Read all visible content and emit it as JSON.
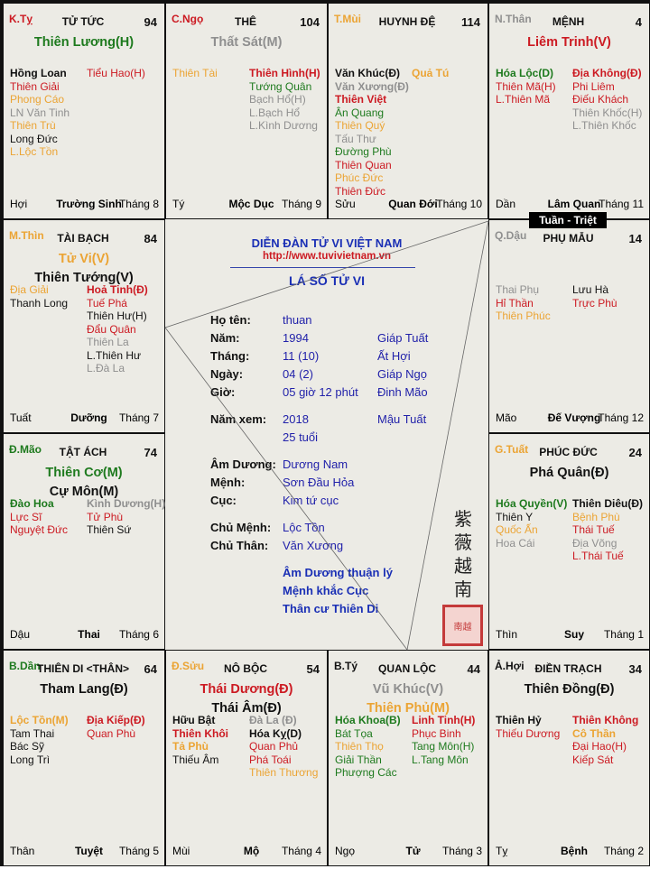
{
  "colors": {
    "R": "#cc1a22",
    "G": "#1e7a1e",
    "O": "#eba434",
    "Gy": "#8f8f8f",
    "K": "#111111"
  },
  "tuan_triet": "Tuần - Triệt",
  "center": {
    "title": "DIỄN ĐÀN TỬ VI VIỆT NAM",
    "url": "http://www.tuvivietnam.vn",
    "subtitle": "LÁ SỐ TỬ VI",
    "rows": [
      {
        "label": "Họ tên:",
        "value": "thuan",
        "extra": ""
      },
      {
        "label": "Năm:",
        "value": "1994",
        "extra": "Giáp Tuất"
      },
      {
        "label": "Tháng:",
        "value": "11 (10)",
        "extra": "Ất Hợi"
      },
      {
        "label": "Ngày:",
        "value": "04 (2)",
        "extra": "Giáp Ngọ"
      },
      {
        "label": "Giờ:",
        "value": "05 giờ 12 phút",
        "extra": "Đinh Mão"
      },
      {
        "label": "Năm xem:",
        "value": "2018",
        "extra": "Mậu Tuất"
      },
      {
        "label": "",
        "value": "25 tuổi",
        "extra": ""
      },
      {
        "label": "Âm Dương:",
        "value": "Dương Nam",
        "extra": ""
      },
      {
        "label": "Mệnh:",
        "value": "Sơn Đầu Hỏa",
        "extra": ""
      },
      {
        "label": "Cục:",
        "value": "Kim tứ cục",
        "extra": ""
      },
      {
        "label": "Chủ Mệnh:",
        "value": "Lộc Tồn",
        "extra": ""
      },
      {
        "label": "Chủ Thân:",
        "value": "Văn Xương",
        "extra": ""
      }
    ],
    "notes": [
      "Âm Dương thuận lý",
      "Mệnh khắc Cục",
      "Thân cư Thiên Di"
    ],
    "cjk": "紫薇越南",
    "seal": "南越"
  },
  "cells": [
    {
      "can": "K.Tỵ",
      "canColor": "R",
      "name": "TỬ TỨC",
      "num": "94",
      "mains": [
        [
          "Thiên Lương(H)",
          "G"
        ]
      ],
      "left": [
        [
          "Hồng Loan",
          "K",
          1
        ],
        [
          "Thiên Giải",
          "R",
          0
        ],
        [
          "Phong Cáo",
          "O",
          0
        ],
        [
          "LN Văn Tinh",
          "Gy",
          0
        ],
        [
          "Thiên Trù",
          "O",
          0
        ],
        [
          "Long Đức",
          "K",
          0
        ],
        [
          "L.Lộc Tồn",
          "O",
          0
        ]
      ],
      "right": [
        [
          "Tiểu Hao(H)",
          "R",
          0
        ]
      ],
      "branch": "Hợi",
      "stage": "Trường Sinh",
      "month": "Tháng 8"
    },
    {
      "can": "C.Ngọ",
      "canColor": "R",
      "name": "THÊ",
      "num": "104",
      "mains": [
        [
          "Thất Sát(M)",
          "Gy"
        ]
      ],
      "left": [
        [
          "Thiên Tài",
          "O",
          0
        ]
      ],
      "right": [
        [
          "Thiên Hình(H)",
          "R",
          1
        ],
        [
          "Tướng Quân",
          "G",
          0
        ],
        [
          "Bạch Hổ(H)",
          "Gy",
          0
        ],
        [
          "L.Bạch Hổ",
          "Gy",
          0
        ],
        [
          "L.Kình Dương",
          "Gy",
          0
        ]
      ],
      "branch": "Tý",
      "stage": "Mộc Dục",
      "month": "Tháng 9"
    },
    {
      "can": "T.Mùi",
      "canColor": "O",
      "name": "HUYNH ĐỆ",
      "num": "114",
      "mains": [],
      "left": [
        [
          "Văn Khúc(Đ)",
          "K",
          1
        ],
        [
          "Văn Xương(Đ)",
          "Gy",
          1
        ],
        [
          "Thiên Việt",
          "R",
          1
        ],
        [
          "Ân Quang",
          "G",
          0
        ],
        [
          "Thiên Quý",
          "O",
          0
        ],
        [
          "Tấu Thư",
          "Gy",
          0
        ],
        [
          "Đường Phù",
          "G",
          0
        ],
        [
          "Thiên Quan",
          "R",
          0
        ],
        [
          "Phúc Đức",
          "O",
          0
        ],
        [
          "Thiên Đức",
          "R",
          0
        ]
      ],
      "right": [
        [
          "Quả Tú",
          "O",
          1
        ]
      ],
      "branch": "Sửu",
      "stage": "Quan Đới",
      "month": "Tháng 10"
    },
    {
      "can": "N.Thân",
      "canColor": "Gy",
      "name": "MỆNH",
      "num": "4",
      "mains": [
        [
          "Liêm Trinh(V)",
          "R"
        ]
      ],
      "left": [
        [
          "Hóa Lộc(D)",
          "G",
          1
        ],
        [
          "Thiên Mã(H)",
          "R",
          0
        ],
        [
          "L.Thiên Mã",
          "R",
          0
        ]
      ],
      "right": [
        [
          "Địa Không(Đ)",
          "R",
          1
        ],
        [
          "Phi Liêm",
          "R",
          0
        ],
        [
          "Điếu Khách",
          "R",
          0
        ],
        [
          "Thiên Khốc(H)",
          "Gy",
          0
        ],
        [
          "L.Thiên Khốc",
          "Gy",
          0
        ]
      ],
      "branch": "Dần",
      "stage": "Lâm Quan",
      "month": "Tháng 11"
    },
    {
      "can": "M.Thìn",
      "canColor": "O",
      "name": "TÀI BẠCH",
      "num": "84",
      "mains": [
        [
          "Tử Vi(V)",
          "O"
        ],
        [
          "Thiên Tướng(V)",
          "K"
        ]
      ],
      "left": [
        [
          "Địa Giải",
          "O",
          0
        ],
        [
          "Thanh Long",
          "K",
          0
        ]
      ],
      "right": [
        [
          "Hoả Tinh(Đ)",
          "R",
          1
        ],
        [
          "Tuế Phá",
          "R",
          0
        ],
        [
          "Thiên Hư(H)",
          "K",
          0
        ],
        [
          "Đẩu Quân",
          "R",
          0
        ],
        [
          "Thiên La",
          "Gy",
          0
        ],
        [
          "L.Thiên Hư",
          "K",
          0
        ],
        [
          "L.Đà La",
          "Gy",
          0
        ]
      ],
      "branch": "Tuất",
      "stage": "Dưỡng",
      "month": "Tháng 7"
    },
    {
      "can": "Q.Dậu",
      "canColor": "Gy",
      "name": "PHỤ MẪU",
      "num": "14",
      "mains": [],
      "left": [
        [
          "Thai Phụ",
          "Gy",
          0
        ],
        [
          "Hỉ Thần",
          "R",
          0
        ],
        [
          "Thiên Phúc",
          "O",
          0
        ]
      ],
      "right": [
        [
          "Lưu Hà",
          "K",
          0
        ],
        [
          "Trực Phù",
          "R",
          0
        ]
      ],
      "branch": "Mão",
      "stage": "Đế Vượng",
      "month": "Tháng 12"
    },
    {
      "can": "Đ.Mão",
      "canColor": "G",
      "name": "TẬT ÁCH",
      "num": "74",
      "mains": [
        [
          "Thiên Cơ(M)",
          "G"
        ],
        [
          "Cự Môn(M)",
          "K"
        ]
      ],
      "left": [
        [
          "Đào Hoa",
          "G",
          1
        ],
        [
          "Lực Sĩ",
          "R",
          0
        ],
        [
          "Nguyệt Đức",
          "R",
          0
        ]
      ],
      "right": [
        [
          "Kình Dương(H)",
          "Gy",
          1
        ],
        [
          "Tử Phù",
          "R",
          0
        ],
        [
          "Thiên Sứ",
          "K",
          0
        ]
      ],
      "branch": "Dậu",
      "stage": "Thai",
      "month": "Tháng 6"
    },
    {
      "can": "G.Tuất",
      "canColor": "O",
      "name": "PHÚC ĐỨC",
      "num": "24",
      "mains": [
        [
          "Phá Quân(Đ)",
          "K"
        ]
      ],
      "left": [
        [
          "Hóa Quyền(V)",
          "G",
          1
        ],
        [
          "Thiên Y",
          "K",
          0
        ],
        [
          "Quốc Ấn",
          "O",
          0
        ],
        [
          "Hoa Cái",
          "Gy",
          0
        ]
      ],
      "right": [
        [
          "Thiên Diêu(Đ)",
          "K",
          1
        ],
        [
          "Bệnh Phù",
          "O",
          0
        ],
        [
          "Thái Tuế",
          "R",
          0
        ],
        [
          "Địa Võng",
          "Gy",
          0
        ],
        [
          "L.Thái Tuế",
          "R",
          0
        ]
      ],
      "branch": "Thìn",
      "stage": "Suy",
      "month": "Tháng 1"
    },
    {
      "can": "B.Dần",
      "canColor": "G",
      "name": "THIÊN DI <THÂN>",
      "num": "64",
      "mains": [
        [
          "Tham Lang(Đ)",
          "K"
        ]
      ],
      "left": [
        [
          "Lộc Tồn(M)",
          "O",
          1
        ],
        [
          "Tam Thai",
          "K",
          0
        ],
        [
          "Bác Sỹ",
          "K",
          0
        ],
        [
          "Long Trì",
          "K",
          0
        ]
      ],
      "right": [
        [
          "Địa Kiếp(Đ)",
          "R",
          1
        ],
        [
          "Quan Phù",
          "R",
          0
        ]
      ],
      "branch": "Thân",
      "stage": "Tuyệt",
      "month": "Tháng 5"
    },
    {
      "can": "Đ.Sửu",
      "canColor": "O",
      "name": "NÔ BỘC",
      "num": "54",
      "mains": [
        [
          "Thái Dương(Đ)",
          "R"
        ],
        [
          "Thái Âm(Đ)",
          "K"
        ]
      ],
      "left": [
        [
          "Hữu Bật",
          "K",
          1
        ],
        [
          "Thiên Khôi",
          "R",
          1
        ],
        [
          "Tả Phù",
          "O",
          1
        ],
        [
          "Thiếu Âm",
          "K",
          0
        ]
      ],
      "right": [
        [
          "Đà La (Đ)",
          "Gy",
          1
        ],
        [
          "Hóa Kỵ(D)",
          "K",
          1
        ],
        [
          "Quan Phủ",
          "R",
          0
        ],
        [
          "Phá Toái",
          "R",
          0
        ],
        [
          "Thiên Thương",
          "O",
          0
        ]
      ],
      "branch": "Mùi",
      "stage": "Mộ",
      "month": "Tháng 4"
    },
    {
      "can": "B.Tý",
      "canColor": "K",
      "name": "QUAN LỘC",
      "num": "44",
      "mains": [
        [
          "Vũ Khúc(V)",
          "Gy"
        ],
        [
          "Thiên Phủ(M)",
          "O"
        ]
      ],
      "left": [
        [
          "Hóa Khoa(B)",
          "G",
          1
        ],
        [
          "Bát Tọa",
          "G",
          0
        ],
        [
          "Thiên Thọ",
          "O",
          0
        ],
        [
          "Giải Thần",
          "G",
          0
        ],
        [
          "Phượng Các",
          "G",
          0
        ]
      ],
      "right": [
        [
          "Linh Tinh(H)",
          "R",
          1
        ],
        [
          "Phục Binh",
          "R",
          0
        ],
        [
          "Tang Môn(H)",
          "G",
          0
        ],
        [
          "L.Tang Môn",
          "G",
          0
        ]
      ],
      "branch": "Ngọ",
      "stage": "Tử",
      "month": "Tháng 3"
    },
    {
      "can": "Ả.Hợi",
      "canColor": "K",
      "name": "ĐIỀN TRẠCH",
      "num": "34",
      "mains": [
        [
          "Thiên Đồng(Đ)",
          "K"
        ]
      ],
      "left": [
        [
          "Thiên Hỷ",
          "K",
          1
        ],
        [
          "Thiếu Dương",
          "R",
          0
        ]
      ],
      "right": [
        [
          "Thiên Không",
          "R",
          1
        ],
        [
          "Cô Thần",
          "O",
          1
        ],
        [
          "Đại Hao(H)",
          "R",
          0
        ],
        [
          "Kiếp Sát",
          "R",
          0
        ]
      ],
      "branch": "Tỵ",
      "stage": "Bệnh",
      "month": "Tháng 2"
    }
  ]
}
